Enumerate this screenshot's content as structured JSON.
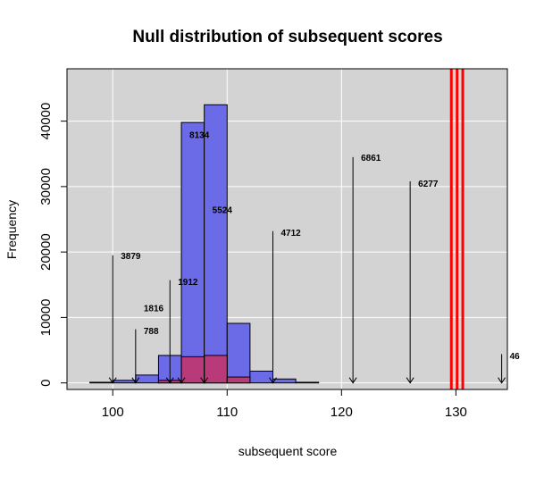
{
  "chart_data": {
    "type": "histogram",
    "title": "Null distribution of subsequent scores",
    "xlabel": "subsequent score",
    "ylabel": "Frequency",
    "xlim": [
      96,
      134.5
    ],
    "ylim": [
      -1000,
      48000
    ],
    "x_ticks": [
      100,
      110,
      120,
      130
    ],
    "y_ticks": [
      0,
      10000,
      20000,
      30000,
      40000
    ],
    "grid": true,
    "colors": {
      "panel_bg": "#d3d3d3",
      "grid": "#ffffff",
      "hist_blue": "#6b6be8",
      "hist_overlay": "#b83a78",
      "threshold_lines": "#ff0000"
    },
    "histogram_main": {
      "bins": [
        98,
        100,
        102,
        104,
        106,
        108,
        110,
        112,
        114,
        116,
        118
      ],
      "counts": [
        100,
        400,
        1200,
        4200,
        39800,
        42500,
        9100,
        1800,
        600,
        100
      ]
    },
    "histogram_overlay": {
      "bins": [
        104,
        106,
        108,
        110,
        112
      ],
      "counts": [
        400,
        4000,
        4200,
        900
      ]
    },
    "threshold_lines": [
      129.6,
      130.1,
      130.6
    ],
    "annotations": [
      {
        "x": 100,
        "y_top": 19500,
        "label": "3879",
        "label_y": 19500
      },
      {
        "x": 102,
        "y_top": 8200,
        "label": "788",
        "label_y": 8000
      },
      {
        "x": 102,
        "y_top": 8200,
        "label": "1816",
        "label_y": 11500
      },
      {
        "x": 105,
        "y_top": 15700,
        "label": "1912",
        "label_y": 15500
      },
      {
        "x": 106,
        "y_top": 4000,
        "label": "8134",
        "label_y": 38000
      },
      {
        "x": 108,
        "y_top": 4200,
        "label": "5524",
        "label_y": 26500
      },
      {
        "x": 114,
        "y_top": 23200,
        "label": "4712",
        "label_y": 23000
      },
      {
        "x": 121,
        "y_top": 34500,
        "label": "6861",
        "label_y": 34500
      },
      {
        "x": 126,
        "y_top": 30800,
        "label": "6277",
        "label_y": 30500
      },
      {
        "x": 134,
        "y_top": 4400,
        "label": "46",
        "label_y": 4200
      }
    ]
  }
}
